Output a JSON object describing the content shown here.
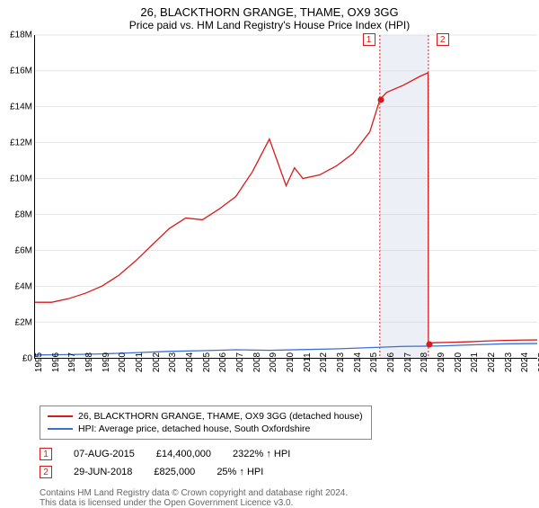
{
  "title": "26, BLACKTHORN GRANGE, THAME, OX9 3GG",
  "subtitle": "Price paid vs. HM Land Registry's House Price Index (HPI)",
  "chart": {
    "type": "line",
    "background_color": "#ffffff",
    "grid_color": "#cccccc",
    "axis_color": "#000000",
    "x_years": [
      1995,
      1996,
      1997,
      1998,
      1999,
      2000,
      2001,
      2002,
      2003,
      2004,
      2005,
      2006,
      2007,
      2008,
      2009,
      2010,
      2011,
      2012,
      2013,
      2014,
      2015,
      2016,
      2017,
      2018,
      2019,
      2020,
      2021,
      2022,
      2023,
      2024,
      2025
    ],
    "ylim": [
      0,
      18000000
    ],
    "ytick_step": 2000000,
    "yticks_labels": [
      "£0",
      "£2M",
      "£4M",
      "£6M",
      "£8M",
      "£10M",
      "£12M",
      "£14M",
      "£16M",
      "£18M"
    ],
    "tick_fontsize": 10,
    "series": [
      {
        "name": "price_paid",
        "label": "26, BLACKTHORN GRANGE, THAME, OX9 3GG (detached house)",
        "color": "#d91a1a",
        "line_width": 1.3,
        "x": [
          1995,
          1996,
          1997,
          1998,
          1999,
          2000,
          2001,
          2002,
          2003,
          2004,
          2005,
          2006,
          2007,
          2008,
          2009,
          2010,
          2010.5,
          2011,
          2012,
          2013,
          2014,
          2015,
          2015.6,
          2016,
          2017,
          2018,
          2018.48,
          2018.5,
          2019,
          2020,
          2021,
          2022,
          2023,
          2024,
          2025
        ],
        "y": [
          3100000,
          3100000,
          3300000,
          3600000,
          4000000,
          4600000,
          5400000,
          6300000,
          7200000,
          7800000,
          7700000,
          8300000,
          9000000,
          10400000,
          12200000,
          9600000,
          10600000,
          10000000,
          10200000,
          10700000,
          11400000,
          12600000,
          14400000,
          14800000,
          15200000,
          15700000,
          15900000,
          825000,
          850000,
          870000,
          900000,
          940000,
          970000,
          990000,
          1000000
        ]
      },
      {
        "name": "hpi",
        "label": "HPI: Average price, detached house, South Oxfordshire",
        "color": "#3a6fd8",
        "line_width": 1.0,
        "x": [
          1995,
          1997,
          1999,
          2001,
          2003,
          2005,
          2007,
          2009,
          2011,
          2013,
          2015,
          2017,
          2019,
          2021,
          2023,
          2025
        ],
        "y": [
          160000,
          180000,
          220000,
          290000,
          360000,
          400000,
          450000,
          420000,
          460000,
          500000,
          570000,
          640000,
          660000,
          720000,
          780000,
          800000
        ]
      }
    ],
    "highlight_band": {
      "x_start": 2015.6,
      "x_end": 2018.5,
      "color": "#c8d2e6",
      "opacity": 0.35
    },
    "markers": [
      {
        "id": "1",
        "x": 2015.6,
        "y": 14400000,
        "color": "#d91a1a",
        "line_dash": "2,2"
      },
      {
        "id": "2",
        "x": 2018.5,
        "y": 825000,
        "color": "#d91a1a",
        "line_dash": "2,2"
      }
    ]
  },
  "legend": {
    "border_color": "#888888",
    "items": [
      {
        "label": "26, BLACKTHORN GRANGE, THAME, OX9 3GG (detached house)",
        "color": "#d91a1a"
      },
      {
        "label": "HPI: Average price, detached house, South Oxfordshire",
        "color": "#3a6fd8"
      }
    ]
  },
  "marker_details": [
    {
      "id": "1",
      "color": "#d91a1a",
      "date": "07-AUG-2015",
      "price": "£14,400,000",
      "pct": "2322% ↑ HPI"
    },
    {
      "id": "2",
      "color": "#d91a1a",
      "date": "29-JUN-2018",
      "price": "£825,000",
      "pct": "25% ↑ HPI"
    }
  ],
  "footer": {
    "line1": "Contains HM Land Registry data © Crown copyright and database right 2024.",
    "line2": "This data is licensed under the Open Government Licence v3.0."
  }
}
